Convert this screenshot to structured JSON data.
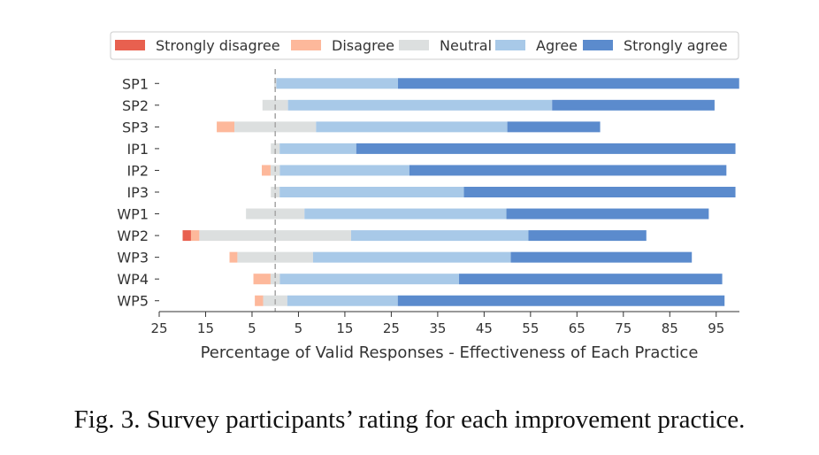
{
  "chart_data": {
    "type": "bar",
    "orientation": "horizontal",
    "stacked": "diverging",
    "xlabel": "Percentage of Valid Responses - Effectiveness of Each Practice",
    "ylabel": "",
    "x_tick_labels": [
      "25",
      "15",
      "5",
      "5",
      "15",
      "25",
      "35",
      "45",
      "55",
      "65",
      "75",
      "85",
      "95"
    ],
    "xlim": [
      -25,
      100
    ],
    "center_line": 0,
    "legend_position": "top",
    "categories": [
      "SP1",
      "SP2",
      "SP3",
      "IP1",
      "IP2",
      "IP3",
      "WP1",
      "WP2",
      "WP3",
      "WP4",
      "WP5"
    ],
    "series": [
      {
        "name": "Strongly disagree",
        "color": "#e8604f",
        "values": [
          0,
          0,
          0,
          0,
          0,
          0,
          0,
          1.8,
          0,
          0,
          0
        ]
      },
      {
        "name": "Disagree",
        "color": "#fdb89b",
        "values": [
          0,
          0,
          3.8,
          0,
          1.9,
          0,
          0,
          1.8,
          1.7,
          3.7,
          1.8
        ]
      },
      {
        "name": "Neutral",
        "color": "#dcdfdf",
        "values": [
          0.5,
          5.5,
          17.6,
          1.9,
          2.0,
          1.9,
          12.6,
          32.7,
          16.3,
          2.0,
          5.2
        ]
      },
      {
        "name": "Agree",
        "color": "#a8c9e8",
        "values": [
          26.2,
          56.9,
          41.2,
          16.5,
          27.9,
          39.7,
          43.5,
          38.2,
          42.6,
          38.6,
          23.8
        ]
      },
      {
        "name": "Strongly agree",
        "color": "#5b8bcd",
        "values": [
          73.5,
          35.0,
          20.0,
          81.7,
          68.3,
          58.5,
          43.6,
          25.4,
          39.0,
          56.7,
          70.4
        ]
      }
    ]
  },
  "caption": "Fig. 3.  Survey participants’ rating for each improvement practice."
}
